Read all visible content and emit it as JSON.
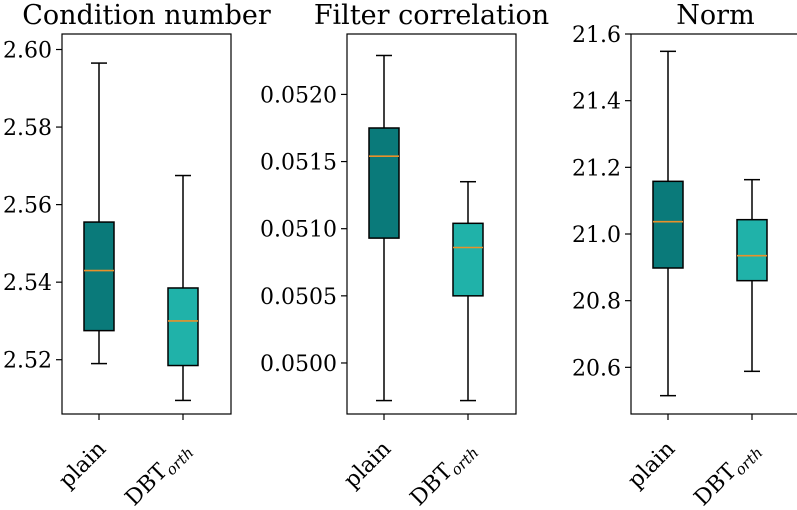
{
  "colors": {
    "plain_fill": "#0a7a7a",
    "dbt_fill": "#20b2a9",
    "median_line": "#e8912a",
    "edge": "#000000"
  },
  "chart_data": [
    {
      "type": "boxplot",
      "title": "Condition number",
      "ylim": [
        2.506,
        2.604
      ],
      "yticks": [
        2.52,
        2.54,
        2.56,
        2.58,
        2.6
      ],
      "ytick_labels": [
        "2.52",
        "2.54",
        "2.56",
        "2.58",
        "2.60"
      ],
      "categories": [
        {
          "label": "plain",
          "sub": ""
        },
        {
          "label": "DBT",
          "sub": "orth"
        }
      ],
      "boxes": [
        {
          "whisker_low": 2.519,
          "q1": 2.5275,
          "median": 2.543,
          "q3": 2.5555,
          "whisker_high": 2.5965
        },
        {
          "whisker_low": 2.5095,
          "q1": 2.5185,
          "median": 2.53,
          "q3": 2.5385,
          "whisker_high": 2.5675
        }
      ]
    },
    {
      "type": "boxplot",
      "title": "Filter correlation",
      "ylim": [
        0.04962,
        0.05245
      ],
      "yticks": [
        0.05,
        0.0505,
        0.051,
        0.0515,
        0.052
      ],
      "ytick_labels": [
        "0.0500",
        "0.0505",
        "0.0510",
        "0.0515",
        "0.0520"
      ],
      "categories": [
        {
          "label": "plain",
          "sub": ""
        },
        {
          "label": "DBT",
          "sub": "orth"
        }
      ],
      "boxes": [
        {
          "whisker_low": 0.04972,
          "q1": 0.05093,
          "median": 0.05154,
          "q3": 0.05175,
          "whisker_high": 0.05229
        },
        {
          "whisker_low": 0.04972,
          "q1": 0.0505,
          "median": 0.05086,
          "q3": 0.05104,
          "whisker_high": 0.05135
        }
      ]
    },
    {
      "type": "boxplot",
      "title": "Norm",
      "ylim": [
        20.46,
        21.6
      ],
      "yticks": [
        20.6,
        20.8,
        21.0,
        21.2,
        21.4,
        21.6
      ],
      "ytick_labels": [
        "20.6",
        "20.8",
        "21.0",
        "21.2",
        "21.4",
        "21.6"
      ],
      "categories": [
        {
          "label": "plain",
          "sub": ""
        },
        {
          "label": "DBT",
          "sub": "orth"
        }
      ],
      "boxes": [
        {
          "whisker_low": 20.515,
          "q1": 20.898,
          "median": 21.037,
          "q3": 21.158,
          "whisker_high": 21.548
        },
        {
          "whisker_low": 20.588,
          "q1": 20.86,
          "median": 20.935,
          "q3": 21.043,
          "whisker_high": 21.163
        }
      ]
    }
  ]
}
